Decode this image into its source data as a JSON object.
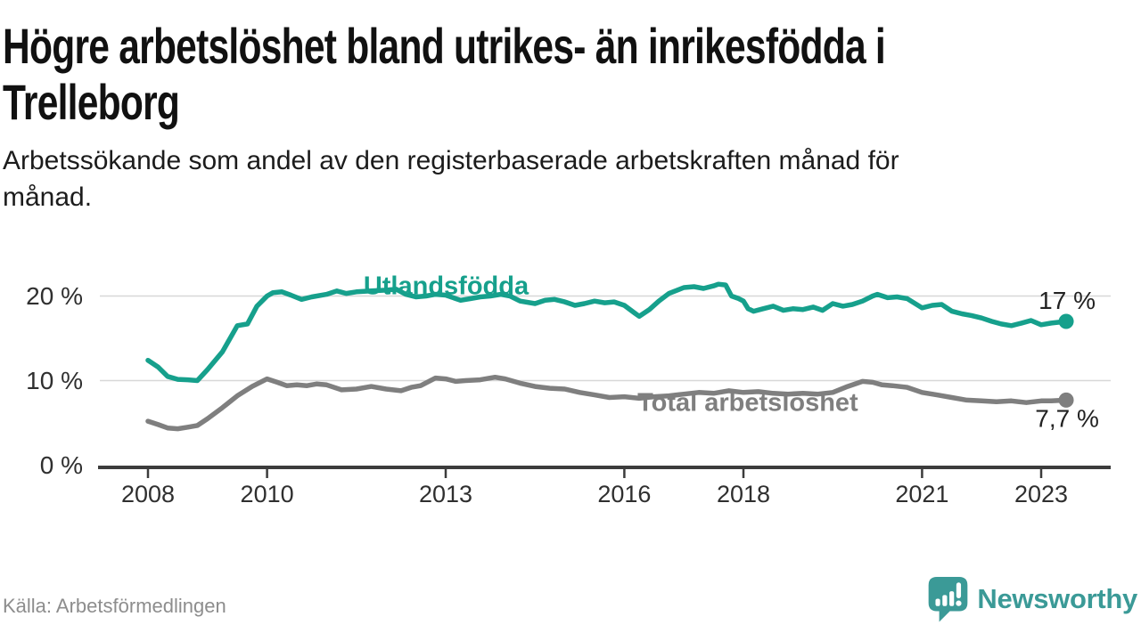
{
  "header": {
    "title": "Högre arbetslöshet bland utrikes- än inrikesfödda i Trelleborg",
    "subtitle": "Arbetssökande som andel av den registerbaserade arbetskraften månad för månad."
  },
  "footer": {
    "source": "Källa: Arbetsförmedlingen",
    "brand": "Newsworthy",
    "brand_icon": "newsworthy-speech-bubble-bar-chart-icon"
  },
  "colors": {
    "series_foreign_born": "#16a08c",
    "series_total": "#7f7f7f",
    "grid": "#d8d8d8",
    "axis": "#3c3c3c",
    "tick_text": "#2f2f2f",
    "value_label_text": "#222222",
    "muted_text": "#8d8d8d",
    "brand_teal": "#3b9a97"
  },
  "chart_data": {
    "type": "line",
    "title": "Högre arbetslöshet bland utrikes- än inrikesfödda i Trelleborg",
    "subtitle": "Arbetssökande som andel av den registerbaserade arbetskraften månad för månad.",
    "source": "Källa: Arbetsförmedlingen",
    "grid": "horizontal-only",
    "legend": "inline-series-labels",
    "x_axis": {
      "unit": "year",
      "range": [
        2007.2,
        2024.2
      ],
      "ticks": [
        2008,
        2010,
        2013,
        2016,
        2018,
        2021,
        2023
      ],
      "tick_labels": [
        "2008",
        "2010",
        "2013",
        "2016",
        "2018",
        "2021",
        "2023"
      ]
    },
    "y_axis": {
      "unit": "percent",
      "range": [
        0,
        23
      ],
      "ticks": [
        0,
        10,
        20
      ],
      "tick_labels": [
        "0 %",
        "10 %",
        "20 %"
      ]
    },
    "series": [
      {
        "name": "Utlandsfödda",
        "color": "#16a08c",
        "end_label": "17 %",
        "end_value": 17,
        "label_anchor": {
          "x": 2011.62,
          "y": 20.2
        },
        "points": [
          [
            2008.0,
            12.4
          ],
          [
            2008.17,
            11.6
          ],
          [
            2008.33,
            10.5
          ],
          [
            2008.5,
            10.15
          ],
          [
            2008.67,
            10.1
          ],
          [
            2008.83,
            10.0
          ],
          [
            2009.0,
            11.3
          ],
          [
            2009.25,
            13.4
          ],
          [
            2009.5,
            16.5
          ],
          [
            2009.67,
            16.7
          ],
          [
            2009.83,
            18.8
          ],
          [
            2010.0,
            20.0
          ],
          [
            2010.1,
            20.4
          ],
          [
            2010.25,
            20.5
          ],
          [
            2010.4,
            20.1
          ],
          [
            2010.58,
            19.6
          ],
          [
            2010.75,
            19.9
          ],
          [
            2011.0,
            20.2
          ],
          [
            2011.17,
            20.6
          ],
          [
            2011.33,
            20.3
          ],
          [
            2011.5,
            20.5
          ],
          [
            2011.75,
            20.6
          ],
          [
            2012.0,
            20.7
          ],
          [
            2012.17,
            20.8
          ],
          [
            2012.33,
            20.2
          ],
          [
            2012.5,
            19.9
          ],
          [
            2012.67,
            20.0
          ],
          [
            2012.83,
            20.2
          ],
          [
            2013.0,
            20.1
          ],
          [
            2013.25,
            19.5
          ],
          [
            2013.42,
            19.7
          ],
          [
            2013.58,
            19.9
          ],
          [
            2013.75,
            20.0
          ],
          [
            2013.92,
            20.2
          ],
          [
            2014.08,
            20.0
          ],
          [
            2014.25,
            19.4
          ],
          [
            2014.5,
            19.1
          ],
          [
            2014.67,
            19.5
          ],
          [
            2014.83,
            19.6
          ],
          [
            2015.0,
            19.3
          ],
          [
            2015.17,
            18.9
          ],
          [
            2015.33,
            19.1
          ],
          [
            2015.5,
            19.4
          ],
          [
            2015.67,
            19.2
          ],
          [
            2015.83,
            19.3
          ],
          [
            2016.0,
            18.9
          ],
          [
            2016.17,
            18.0
          ],
          [
            2016.25,
            17.6
          ],
          [
            2016.42,
            18.4
          ],
          [
            2016.58,
            19.4
          ],
          [
            2016.75,
            20.3
          ],
          [
            2017.0,
            21.0
          ],
          [
            2017.17,
            21.1
          ],
          [
            2017.33,
            20.9
          ],
          [
            2017.5,
            21.2
          ],
          [
            2017.58,
            21.4
          ],
          [
            2017.7,
            21.3
          ],
          [
            2017.8,
            20.0
          ],
          [
            2017.92,
            19.7
          ],
          [
            2018.0,
            19.4
          ],
          [
            2018.08,
            18.5
          ],
          [
            2018.17,
            18.2
          ],
          [
            2018.33,
            18.5
          ],
          [
            2018.5,
            18.8
          ],
          [
            2018.67,
            18.3
          ],
          [
            2018.83,
            18.5
          ],
          [
            2019.0,
            18.4
          ],
          [
            2019.17,
            18.7
          ],
          [
            2019.33,
            18.3
          ],
          [
            2019.5,
            19.1
          ],
          [
            2019.67,
            18.8
          ],
          [
            2019.83,
            19.0
          ],
          [
            2020.0,
            19.4
          ],
          [
            2020.17,
            20.0
          ],
          [
            2020.25,
            20.2
          ],
          [
            2020.42,
            19.8
          ],
          [
            2020.58,
            19.9
          ],
          [
            2020.75,
            19.7
          ],
          [
            2021.0,
            18.6
          ],
          [
            2021.17,
            18.9
          ],
          [
            2021.33,
            19.0
          ],
          [
            2021.5,
            18.2
          ],
          [
            2021.67,
            17.9
          ],
          [
            2021.83,
            17.7
          ],
          [
            2022.0,
            17.4
          ],
          [
            2022.17,
            17.0
          ],
          [
            2022.33,
            16.7
          ],
          [
            2022.5,
            16.5
          ],
          [
            2022.67,
            16.8
          ],
          [
            2022.83,
            17.1
          ],
          [
            2023.0,
            16.6
          ],
          [
            2023.17,
            16.8
          ],
          [
            2023.42,
            17.0
          ]
        ]
      },
      {
        "name": "Total arbetslöshet",
        "color": "#7f7f7f",
        "end_label": "7,7 %",
        "end_value": 7.7,
        "label_anchor": {
          "x": 2016.22,
          "y": 6.4
        },
        "points": [
          [
            2008.0,
            5.2
          ],
          [
            2008.17,
            4.8
          ],
          [
            2008.33,
            4.4
          ],
          [
            2008.5,
            4.3
          ],
          [
            2008.67,
            4.5
          ],
          [
            2008.83,
            4.7
          ],
          [
            2009.0,
            5.5
          ],
          [
            2009.25,
            6.8
          ],
          [
            2009.5,
            8.2
          ],
          [
            2009.75,
            9.3
          ],
          [
            2010.0,
            10.2
          ],
          [
            2010.17,
            9.8
          ],
          [
            2010.33,
            9.4
          ],
          [
            2010.5,
            9.5
          ],
          [
            2010.67,
            9.4
          ],
          [
            2010.83,
            9.6
          ],
          [
            2011.0,
            9.5
          ],
          [
            2011.25,
            8.9
          ],
          [
            2011.5,
            9.0
          ],
          [
            2011.75,
            9.3
          ],
          [
            2012.0,
            9.0
          ],
          [
            2012.25,
            8.8
          ],
          [
            2012.42,
            9.2
          ],
          [
            2012.58,
            9.4
          ],
          [
            2012.83,
            10.3
          ],
          [
            2013.0,
            10.2
          ],
          [
            2013.17,
            9.9
          ],
          [
            2013.33,
            10.0
          ],
          [
            2013.58,
            10.1
          ],
          [
            2013.83,
            10.4
          ],
          [
            2014.0,
            10.2
          ],
          [
            2014.25,
            9.7
          ],
          [
            2014.5,
            9.3
          ],
          [
            2014.75,
            9.1
          ],
          [
            2015.0,
            9.0
          ],
          [
            2015.25,
            8.6
          ],
          [
            2015.5,
            8.3
          ],
          [
            2015.75,
            8.0
          ],
          [
            2016.0,
            8.1
          ],
          [
            2016.25,
            7.9
          ],
          [
            2016.5,
            8.1
          ],
          [
            2016.75,
            8.2
          ],
          [
            2017.0,
            8.4
          ],
          [
            2017.25,
            8.6
          ],
          [
            2017.5,
            8.5
          ],
          [
            2017.75,
            8.8
          ],
          [
            2018.0,
            8.6
          ],
          [
            2018.25,
            8.7
          ],
          [
            2018.5,
            8.5
          ],
          [
            2018.75,
            8.4
          ],
          [
            2019.0,
            8.5
          ],
          [
            2019.25,
            8.4
          ],
          [
            2019.5,
            8.6
          ],
          [
            2019.75,
            9.3
          ],
          [
            2020.0,
            9.9
          ],
          [
            2020.17,
            9.8
          ],
          [
            2020.33,
            9.5
          ],
          [
            2020.5,
            9.4
          ],
          [
            2020.75,
            9.2
          ],
          [
            2021.0,
            8.6
          ],
          [
            2021.25,
            8.3
          ],
          [
            2021.5,
            8.0
          ],
          [
            2021.75,
            7.7
          ],
          [
            2022.0,
            7.6
          ],
          [
            2022.25,
            7.5
          ],
          [
            2022.5,
            7.6
          ],
          [
            2022.75,
            7.4
          ],
          [
            2023.0,
            7.6
          ],
          [
            2023.17,
            7.6
          ],
          [
            2023.42,
            7.7
          ]
        ]
      }
    ]
  }
}
